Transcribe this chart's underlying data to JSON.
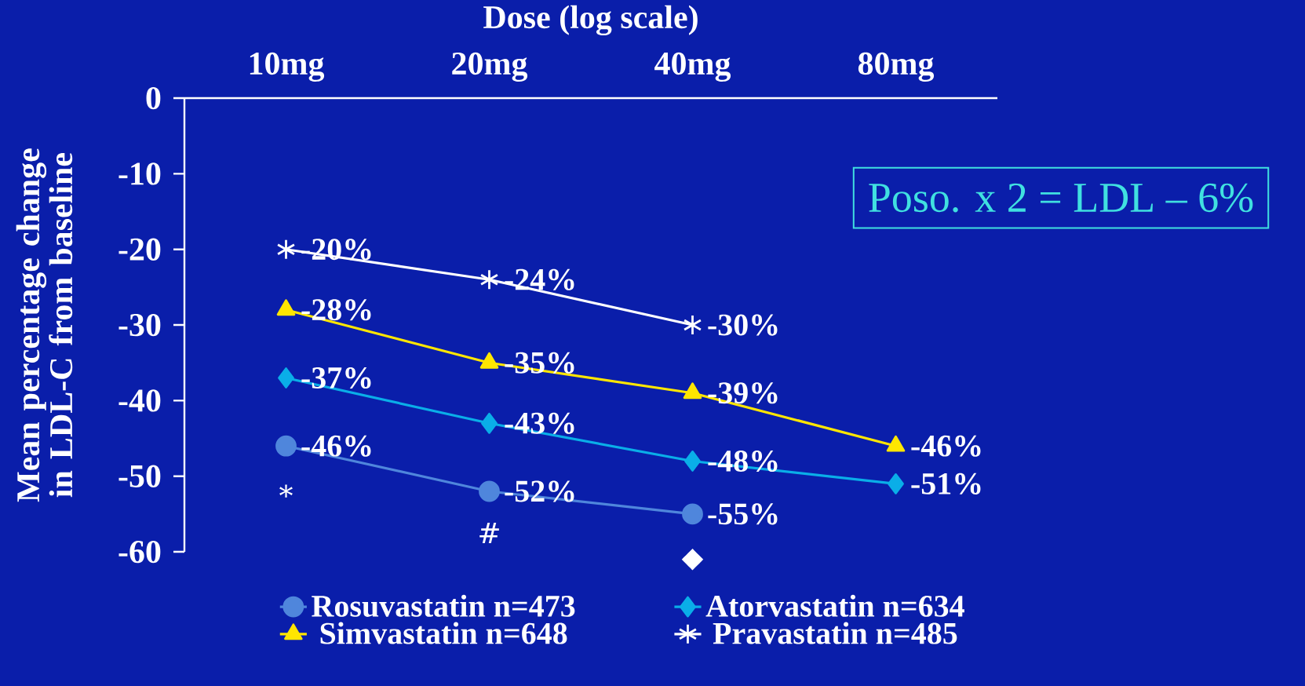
{
  "chart_data": {
    "type": "line",
    "xlabel": "Dose (log scale)",
    "ylabel": "Mean percentage change in LDL-C from baseline",
    "categories": [
      "10mg",
      "20mg",
      "40mg",
      "80mg"
    ],
    "ylim": [
      -60,
      0
    ],
    "yticks": [
      0,
      -10,
      -20,
      -30,
      -40,
      -50,
      -60
    ],
    "series": [
      {
        "name": "Rosuvastatin n=473",
        "color": "#4f86dc",
        "marker": "circle",
        "values": [
          -46,
          -52,
          -55,
          null
        ],
        "value_labels": [
          "-46%",
          "-52%",
          "-55%",
          null
        ]
      },
      {
        "name": "Atorvastatin n=634",
        "color": "#0aaee8",
        "marker": "diamond",
        "values": [
          -37,
          -43,
          -48,
          -51
        ],
        "value_labels": [
          "-37%",
          "-43%",
          "-48%",
          "-51%"
        ]
      },
      {
        "name": "Simvastatin n=648",
        "color": "#ffe600",
        "marker": "triangle",
        "values": [
          -28,
          -35,
          -39,
          -46
        ],
        "value_labels": [
          "-28%",
          "-35%",
          "-39%",
          "-46%"
        ]
      },
      {
        "name": "Pravastatin n=485",
        "color": "#ffffff",
        "marker": "cross",
        "values": [
          -20,
          -24,
          -30,
          null
        ],
        "value_labels": [
          "-20%",
          "-24%",
          "-30%",
          null
        ]
      }
    ],
    "annotations": [
      "*",
      "#",
      "◆",
      "Poso. x 2 = LDL – 6%"
    ],
    "legend": "bottom",
    "line_style": "solid"
  }
}
